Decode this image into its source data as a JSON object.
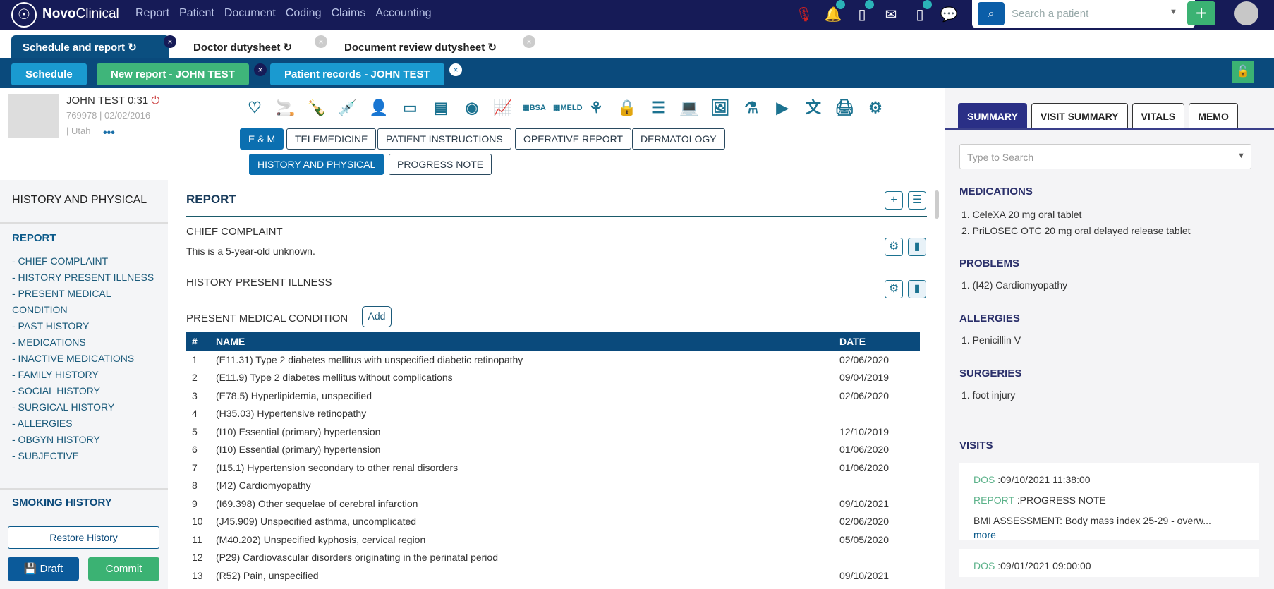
{
  "app": {
    "brand_bold": "Novo",
    "brand_rest": "Clinical",
    "menu": [
      "Report",
      "Patient",
      "Document",
      "Coding",
      "Claims",
      "Accounting"
    ],
    "search_placeholder": "Search a patient",
    "add": "+"
  },
  "main_tabs": [
    {
      "label": "Schedule and report ↻",
      "active": true
    },
    {
      "label": "Doctor dutysheet ↻"
    },
    {
      "label": "Document review dutysheet ↻"
    }
  ],
  "sub_tabs": [
    {
      "label": "Schedule",
      "color": "#1a9ad0"
    },
    {
      "label": "New report - JOHN TEST",
      "color": "#3fb57a"
    },
    {
      "label": "Patient records - JOHN TEST",
      "color": "#1a9ad0"
    }
  ],
  "patient": {
    "name": "JOHN TEST 0:31",
    "id_dob": "769978 | 02/02/2016",
    "location": "| Utah",
    "more": "•••"
  },
  "toolbar_icons": [
    "heart-icon",
    "smoking-icon",
    "alcohol-icon",
    "syringe-icon",
    "person-icon",
    "video-icon",
    "document-icon",
    "eye-icon",
    "chart-icon",
    "bsa-calculator-icon",
    "meld-calculator-icon",
    "network-icon",
    "lock-icon",
    "note-icon",
    "laptop-icon",
    "image-icon",
    "flask-icon",
    "play-icon",
    "translate-icon",
    "print-icon",
    "gear-icon"
  ],
  "report_types": [
    "E & M",
    "TELEMEDICINE",
    "PATIENT INSTRUCTIONS",
    "OPERATIVE REPORT",
    "DERMATOLOGY"
  ],
  "report_subtypes": [
    "HISTORY AND PHYSICAL",
    "PROGRESS NOTE"
  ],
  "sidebar": {
    "heading": "HISTORY AND PHYSICAL",
    "report": "REPORT",
    "items": [
      "- CHIEF COMPLAINT",
      "- HISTORY PRESENT ILLNESS",
      "- PRESENT MEDICAL CONDITION",
      "- PAST HISTORY",
      "- MEDICATIONS",
      "- INACTIVE MEDICATIONS",
      "- FAMILY HISTORY",
      "- SOCIAL HISTORY",
      "- SURGICAL HISTORY",
      "- ALLERGIES",
      "- OBGYN HISTORY",
      "- SUBJECTIVE"
    ],
    "smoking": "SMOKING HISTORY",
    "restore": "Restore History",
    "draft": "Draft",
    "commit": "Commit"
  },
  "report": {
    "title": "REPORT",
    "chief_complaint": "CHIEF COMPLAINT",
    "chief_text": "This is a 5-year-old unknown.",
    "hpi": "HISTORY PRESENT ILLNESS",
    "pmc": "PRESENT MEDICAL CONDITION",
    "add": "Add",
    "columns": [
      "#",
      "NAME",
      "DATE"
    ],
    "rows": [
      [
        "1",
        "(E11.31) Type 2 diabetes mellitus with unspecified diabetic retinopathy",
        "02/06/2020"
      ],
      [
        "2",
        "(E11.9) Type 2 diabetes mellitus without complications",
        "09/04/2019"
      ],
      [
        "3",
        "(E78.5) Hyperlipidemia, unspecified",
        "02/06/2020"
      ],
      [
        "4",
        "(H35.03) Hypertensive retinopathy",
        ""
      ],
      [
        "5",
        "(I10) Essential (primary) hypertension",
        "12/10/2019"
      ],
      [
        "6",
        "(I10) Essential (primary) hypertension",
        "01/06/2020"
      ],
      [
        "7",
        "(I15.1) Hypertension secondary to other renal disorders",
        "01/06/2020"
      ],
      [
        "8",
        "(I42) Cardiomyopathy",
        ""
      ],
      [
        "9",
        "(I69.398) Other sequelae of cerebral infarction",
        "09/10/2021"
      ],
      [
        "10",
        "(J45.909) Unspecified asthma, uncomplicated",
        "02/06/2020"
      ],
      [
        "11",
        "(M40.202) Unspecified kyphosis, cervical region",
        "05/05/2020"
      ],
      [
        "12",
        "(P29) Cardiovascular disorders originating in the perinatal period",
        ""
      ],
      [
        "13",
        "(R52) Pain, unspecified",
        "09/10/2021"
      ]
    ]
  },
  "right": {
    "tabs": [
      "SUMMARY",
      "VISIT SUMMARY",
      "VITALS",
      "MEMO"
    ],
    "search_placeholder": "Type to Search",
    "medications_h": "MEDICATIONS",
    "medications": [
      "1. CeleXA 20 mg oral tablet",
      "2. PriLOSEC OTC 20 mg oral delayed release tablet"
    ],
    "problems_h": "PROBLEMS",
    "problems": [
      "1. (I42) Cardiomyopathy"
    ],
    "allergies_h": "ALLERGIES",
    "allergies": [
      "1. Penicillin V"
    ],
    "surgeries_h": "SURGERIES",
    "surgeries": [
      "1. foot injury"
    ],
    "visits_h": "VISITS",
    "visits": [
      {
        "dos_label": "DOS",
        "dos": ":09/10/2021 11:38:00",
        "report_label": "REPORT",
        "report": ":PROGRESS NOTE",
        "note": "BMI ASSESSMENT: Body mass index 25-29 - overw...",
        "more": "more"
      },
      {
        "dos_label": "DOS",
        "dos": ":09/01/2021 09:00:00"
      }
    ]
  }
}
